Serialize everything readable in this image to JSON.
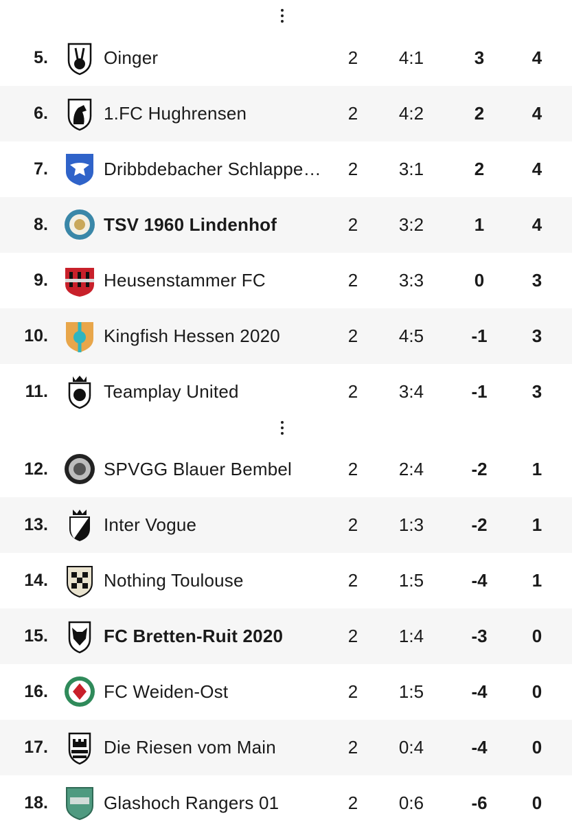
{
  "table": {
    "rows": [
      {
        "pos": "5.",
        "name": "Oinger",
        "played": "2",
        "goals": "4:1",
        "diff": "3",
        "points": "4",
        "logo": "rabbit-crest-icon",
        "highlight": false
      },
      {
        "pos": "6.",
        "name": "1.FC Hughrensen",
        "played": "2",
        "goals": "4:2",
        "diff": "2",
        "points": "4",
        "logo": "horse-crest-icon",
        "highlight": false
      },
      {
        "pos": "7.",
        "name": "Dribbdebacher Schlappekic…",
        "played": "2",
        "goals": "3:1",
        "diff": "2",
        "points": "4",
        "logo": "eagle-crest-icon",
        "highlight": false
      },
      {
        "pos": "8.",
        "name": "TSV 1960 Lindenhof",
        "played": "2",
        "goals": "3:2",
        "diff": "1",
        "points": "4",
        "logo": "lion-round-crest-icon",
        "highlight": true
      },
      {
        "pos": "9.",
        "name": "Heusenstammer FC",
        "played": "2",
        "goals": "3:3",
        "diff": "0",
        "points": "3",
        "logo": "castle-crest-icon",
        "highlight": false
      },
      {
        "pos": "10.",
        "name": "Kingfish Hessen 2020",
        "played": "2",
        "goals": "4:5",
        "diff": "-1",
        "points": "3",
        "logo": "kh-crest-icon",
        "highlight": false
      },
      {
        "pos": "11.",
        "name": "Teamplay United",
        "played": "2",
        "goals": "3:4",
        "diff": "-1",
        "points": "3",
        "logo": "crowned-lion-crest-icon",
        "highlight": false
      },
      {
        "pos": "12.",
        "name": "SPVGG Blauer Bembel",
        "played": "2",
        "goals": "2:4",
        "diff": "-2",
        "points": "1",
        "logo": "round-bembel-crest-icon",
        "highlight": false
      },
      {
        "pos": "13.",
        "name": "Inter Vogue",
        "played": "2",
        "goals": "1:3",
        "diff": "-2",
        "points": "1",
        "logo": "diagonal-crest-icon",
        "highlight": false
      },
      {
        "pos": "14.",
        "name": "Nothing Toulouse",
        "played": "2",
        "goals": "1:5",
        "diff": "-4",
        "points": "1",
        "logo": "checkered-crest-icon",
        "highlight": false
      },
      {
        "pos": "15.",
        "name": "FC Bretten-Ruit 2020",
        "played": "2",
        "goals": "1:4",
        "diff": "-3",
        "points": "0",
        "logo": "fox-crest-icon",
        "highlight": true
      },
      {
        "pos": "16.",
        "name": "FC Weiden-Ost",
        "played": "2",
        "goals": "1:5",
        "diff": "-4",
        "points": "0",
        "logo": "green-round-crest-icon",
        "highlight": false
      },
      {
        "pos": "17.",
        "name": "Die Riesen vom Main",
        "played": "2",
        "goals": "0:4",
        "diff": "-4",
        "points": "0",
        "logo": "tower-crest-icon",
        "highlight": false
      },
      {
        "pos": "18.",
        "name": "Glashoch Rangers 01",
        "played": "2",
        "goals": "0:6",
        "diff": "-6",
        "points": "0",
        "logo": "green-shield-crest-icon",
        "highlight": false
      }
    ]
  }
}
